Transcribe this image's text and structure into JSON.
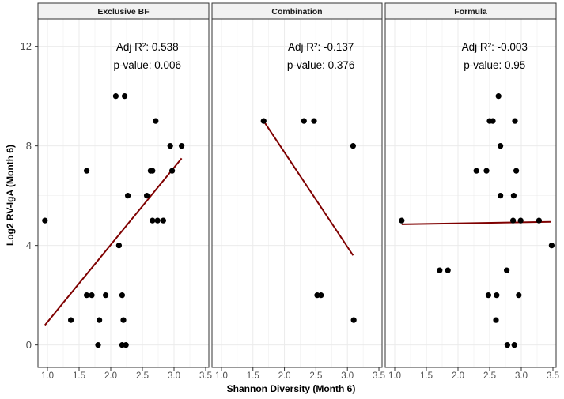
{
  "chart_data": {
    "type": "scatter",
    "xlabel": "Shannon Diversity (Month 6)",
    "ylabel": "Log2 RV-IgA (Month 6)",
    "xlim": [
      0.85,
      3.55
    ],
    "ylim": [
      -0.9,
      13.1
    ],
    "x_ticks": [
      "1.0",
      "1.5",
      "2.0",
      "2.5",
      "3.0",
      "3.5"
    ],
    "x_tick_values": [
      1.0,
      1.5,
      2.0,
      2.5,
      3.0,
      3.5
    ],
    "y_ticks": [
      "0",
      "4",
      "8",
      "12"
    ],
    "y_tick_values": [
      0,
      4,
      8,
      12
    ],
    "grid": true,
    "point_color": "#000000",
    "line_color": "#7f0000",
    "strip_fill": "#f2f2f2",
    "grid_color": "#ebebeb",
    "panels": [
      {
        "title": "Exclusive BF",
        "annotation": [
          "Adj R²: 0.538",
          "p-value: 0.006"
        ],
        "fit": {
          "x": [
            0.96,
            3.12
          ],
          "y": [
            0.8,
            7.5
          ]
        },
        "points": [
          [
            0.96,
            5
          ],
          [
            1.37,
            1
          ],
          [
            1.62,
            7
          ],
          [
            1.62,
            2
          ],
          [
            1.7,
            2
          ],
          [
            1.8,
            0
          ],
          [
            1.82,
            1
          ],
          [
            1.92,
            2
          ],
          [
            2.08,
            10
          ],
          [
            2.13,
            4
          ],
          [
            2.18,
            2
          ],
          [
            2.18,
            0
          ],
          [
            2.2,
            1
          ],
          [
            2.22,
            10
          ],
          [
            2.24,
            0
          ],
          [
            2.27,
            6
          ],
          [
            2.57,
            6
          ],
          [
            2.63,
            7
          ],
          [
            2.66,
            7
          ],
          [
            2.66,
            5
          ],
          [
            2.71,
            9
          ],
          [
            2.74,
            5
          ],
          [
            2.83,
            5
          ],
          [
            2.94,
            8
          ],
          [
            2.97,
            7
          ],
          [
            3.12,
            8
          ]
        ]
      },
      {
        "title": "Combination",
        "annotation": [
          "Adj R²: -0.137",
          "p-value: 0.376"
        ],
        "fit": {
          "x": [
            1.67,
            3.09
          ],
          "y": [
            9.0,
            3.6
          ]
        },
        "points": [
          [
            1.67,
            9
          ],
          [
            2.31,
            9
          ],
          [
            2.47,
            9
          ],
          [
            2.52,
            2
          ],
          [
            2.58,
            2
          ],
          [
            3.09,
            8
          ],
          [
            3.1,
            1
          ]
        ]
      },
      {
        "title": "Formula",
        "annotation": [
          "Adj R²: -0.003",
          "p-value: 0.95"
        ],
        "fit": {
          "x": [
            1.11,
            3.47
          ],
          "y": [
            4.85,
            4.95
          ]
        },
        "points": [
          [
            1.11,
            5
          ],
          [
            1.71,
            3
          ],
          [
            1.84,
            3
          ],
          [
            2.29,
            7
          ],
          [
            2.45,
            7
          ],
          [
            2.48,
            2
          ],
          [
            2.5,
            9
          ],
          [
            2.55,
            9
          ],
          [
            2.6,
            1
          ],
          [
            2.61,
            2
          ],
          [
            2.64,
            10
          ],
          [
            2.67,
            8
          ],
          [
            2.67,
            6
          ],
          [
            2.77,
            3
          ],
          [
            2.78,
            0
          ],
          [
            2.87,
            5
          ],
          [
            2.88,
            6
          ],
          [
            2.89,
            0
          ],
          [
            2.9,
            9
          ],
          [
            2.92,
            7
          ],
          [
            2.96,
            2
          ],
          [
            2.99,
            5
          ],
          [
            3.28,
            5
          ],
          [
            3.48,
            4
          ]
        ]
      }
    ]
  }
}
